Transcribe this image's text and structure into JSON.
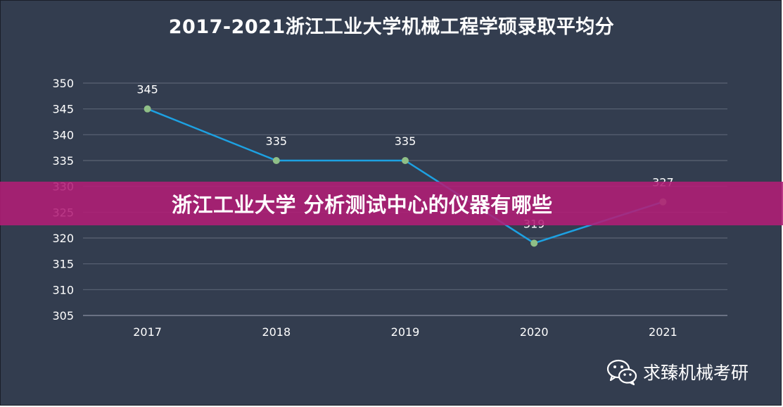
{
  "chart_data": {
    "type": "line",
    "title": "2017-2021浙江工业大学机械工程学硕录取平均分",
    "categories": [
      "2017",
      "2018",
      "2019",
      "2020",
      "2021"
    ],
    "values": [
      345,
      335,
      335,
      319,
      327
    ],
    "data_labels": [
      "345",
      "335",
      "335",
      "319",
      "327"
    ],
    "yticks": [
      "350",
      "345",
      "340",
      "335",
      "330",
      "325",
      "320",
      "315",
      "310",
      "305"
    ],
    "ylim": [
      305,
      350
    ],
    "grid": true,
    "line_color": "#1da1e2",
    "marker_color": "#8fbf87"
  },
  "banner": {
    "text": "浙江工业大学 分析测试中心的仪器有哪些",
    "color": "#b21e76"
  },
  "watermark": {
    "text": "求臻机械考研",
    "icon": "wechat-icon"
  }
}
